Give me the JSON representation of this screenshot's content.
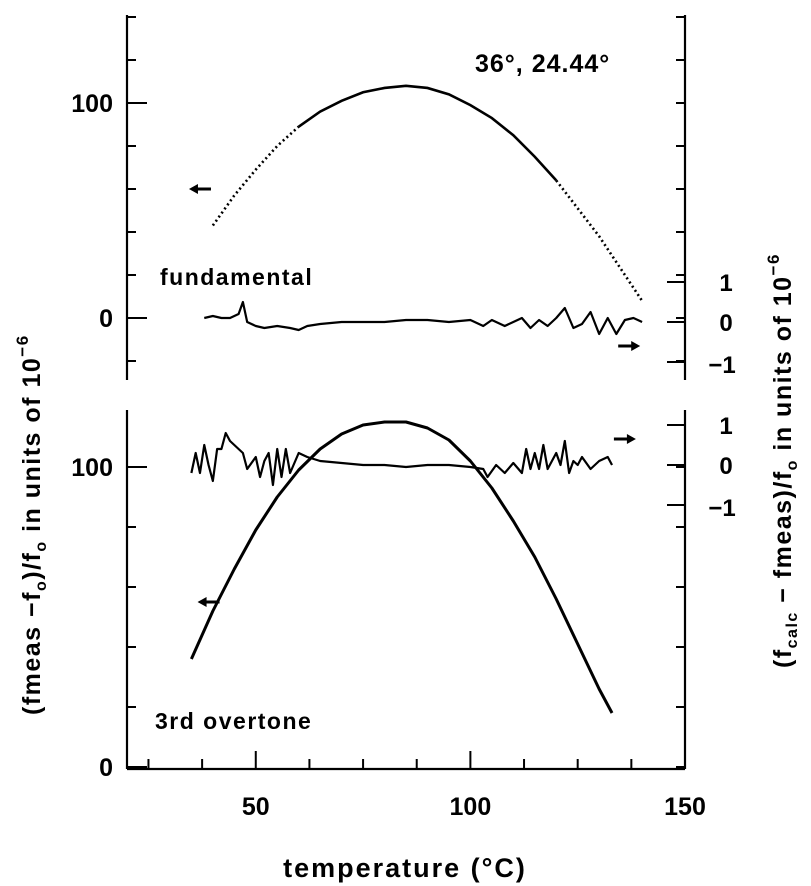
{
  "chart_data": [
    {
      "type": "line",
      "panel": "top",
      "annotation_angles": "36°, 24.44°",
      "label": "fundamental",
      "xlim": [
        20,
        150
      ],
      "ylim_left": [
        -30,
        135
      ],
      "left_ticks": [
        "0",
        "100"
      ],
      "ylim_right": [
        -1.2,
        10
      ],
      "right_ticks": [
        "1",
        "0",
        "−1"
      ],
      "series": [
        {
          "axis": "left",
          "style": "solid-then-dotted at ends",
          "x": [
            40,
            45,
            50,
            55,
            60,
            65,
            70,
            75,
            80,
            85,
            90,
            95,
            100,
            105,
            110,
            115,
            120,
            125,
            130,
            135,
            140
          ],
          "y": [
            43,
            57,
            69,
            80,
            89,
            96,
            101,
            105,
            107,
            108,
            107,
            104,
            99,
            93,
            85,
            75,
            64,
            51,
            38,
            23,
            8
          ]
        },
        {
          "axis": "right",
          "x": [
            38,
            40,
            42,
            44,
            46,
            47,
            48,
            50,
            52,
            55,
            58,
            60,
            62,
            65,
            70,
            75,
            80,
            85,
            90,
            95,
            100,
            103,
            105,
            108,
            110,
            112,
            114,
            116,
            118,
            120,
            122,
            124,
            126,
            128,
            130,
            132,
            134,
            136,
            138,
            140
          ],
          "y": [
            0.1,
            0.15,
            0.1,
            0.1,
            0.2,
            0.5,
            0.0,
            -0.1,
            -0.15,
            -0.1,
            -0.15,
            -0.2,
            -0.1,
            -0.05,
            0.0,
            0.0,
            0.0,
            0.05,
            0.05,
            0.0,
            0.05,
            -0.1,
            0.05,
            -0.1,
            0.0,
            0.1,
            -0.15,
            0.05,
            -0.1,
            0.1,
            0.35,
            -0.15,
            -0.05,
            0.25,
            -0.3,
            0.1,
            -0.3,
            0.05,
            0.1,
            0.0
          ]
        }
      ],
      "arrows": [
        {
          "x": 37,
          "y_axis": "left",
          "y": 60,
          "direction": "left"
        },
        {
          "x": 137,
          "y_axis": "right",
          "y": -0.6,
          "direction": "right"
        }
      ]
    },
    {
      "type": "line",
      "panel": "bottom",
      "label": "3rd overtone",
      "xlim": [
        20,
        150
      ],
      "ylim_left": [
        0,
        165
      ],
      "left_ticks": [
        "0",
        "100"
      ],
      "ylim_right": [
        -7,
        2.2
      ],
      "right_ticks": [
        "1",
        "0",
        "−1"
      ],
      "series": [
        {
          "axis": "left",
          "style": "solid",
          "x": [
            35,
            40,
            45,
            50,
            55,
            60,
            65,
            70,
            75,
            80,
            85,
            90,
            95,
            100,
            105,
            110,
            115,
            120,
            125,
            130,
            133
          ],
          "y": [
            36,
            52,
            66,
            79,
            90,
            99,
            106,
            111,
            114,
            115,
            115,
            113,
            109,
            102,
            93,
            82,
            70,
            56,
            41,
            26,
            18
          ]
        },
        {
          "axis": "right",
          "x": [
            35,
            36,
            37,
            38,
            39,
            40,
            41,
            42,
            43,
            44,
            45,
            47,
            48,
            50,
            51,
            52,
            53,
            54,
            55,
            56,
            57,
            58,
            60,
            62,
            65,
            70,
            75,
            80,
            85,
            90,
            95,
            100,
            103,
            104,
            106,
            108,
            110,
            112,
            113,
            114,
            115,
            116,
            117,
            118,
            119,
            120,
            121,
            122,
            123,
            124,
            125,
            126,
            128,
            130,
            132,
            133
          ],
          "y": [
            -0.2,
            0.3,
            -0.2,
            0.5,
            0.0,
            -0.4,
            0.4,
            0.4,
            0.8,
            0.6,
            0.5,
            0.3,
            -0.1,
            0.2,
            -0.3,
            0.1,
            0.3,
            -0.5,
            0.4,
            -0.3,
            0.4,
            -0.2,
            0.3,
            0.2,
            0.1,
            0.05,
            0.0,
            0.0,
            -0.05,
            0.0,
            0.0,
            -0.05,
            -0.1,
            -0.3,
            0.0,
            -0.2,
            0.05,
            -0.2,
            0.4,
            -0.1,
            0.3,
            -0.1,
            0.5,
            -0.1,
            0.1,
            0.3,
            0.0,
            0.6,
            -0.2,
            0.1,
            0.0,
            0.2,
            -0.1,
            0.1,
            0.2,
            0.0
          ]
        }
      ],
      "arrows": [
        {
          "x": 39,
          "y_axis": "left",
          "y": 55,
          "direction": "left"
        },
        {
          "x": 136,
          "y_axis": "right",
          "y": 0.65,
          "direction": "right"
        }
      ]
    }
  ],
  "x_axis": {
    "label": "temperature (°C)",
    "ticks": [
      "50",
      "100",
      "150"
    ]
  },
  "left_axis_label": {
    "main": "(fmeas −f",
    "sub": "o",
    "tail": ")/f",
    "sub2": "o",
    "units": "  in units of 10",
    "exp": "−6"
  },
  "right_axis_label": {
    "main": "(f",
    "sub": "calc",
    "mid": " − fmeas)/f",
    "sub2": "o",
    "units": "   in units of 10",
    "exp": "−6"
  }
}
